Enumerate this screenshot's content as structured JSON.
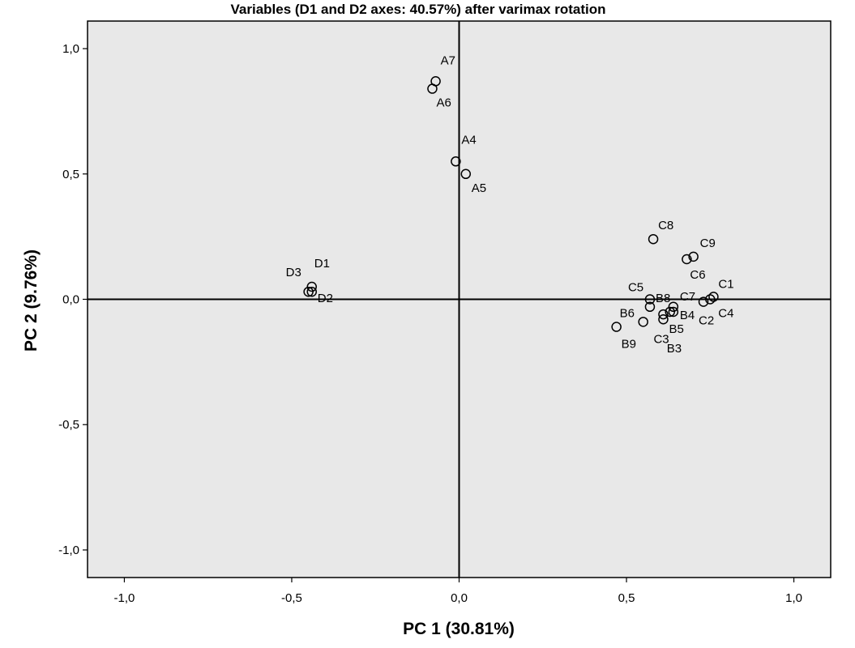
{
  "chart_data": {
    "type": "scatter",
    "title": "Variables (D1 and D2 axes: 40.57%) after varimax rotation",
    "xlabel": "PC 1 (30.81%)",
    "ylabel": "PC 2 (9.76%)",
    "xlim": [
      -1.11,
      1.11
    ],
    "ylim": [
      -1.11,
      1.11
    ],
    "xticks": [
      -1.0,
      -0.5,
      0.0,
      0.5,
      1.0
    ],
    "yticks": [
      -1.0,
      -0.5,
      0.0,
      0.5,
      1.0
    ],
    "xtick_labels": [
      "-1,0",
      "-0,5",
      "0,0",
      "0,5",
      "1,0"
    ],
    "ytick_labels": [
      "-1,0",
      "-0,5",
      "0,0",
      "0,5",
      "1,0"
    ],
    "reference_lines": {
      "x": 0.0,
      "y": 0.0
    },
    "grid": false,
    "background_color": "#e8e8e8",
    "marker_style": "open-circle",
    "points": [
      {
        "label": "A7",
        "x": -0.07,
        "y": 0.87
      },
      {
        "label": "A6",
        "x": -0.08,
        "y": 0.84
      },
      {
        "label": "A4",
        "x": -0.01,
        "y": 0.55
      },
      {
        "label": "A5",
        "x": 0.02,
        "y": 0.5
      },
      {
        "label": "D1",
        "x": -0.44,
        "y": 0.05
      },
      {
        "label": "D3",
        "x": -0.45,
        "y": 0.03
      },
      {
        "label": "D2",
        "x": -0.44,
        "y": 0.03
      },
      {
        "label": "C8",
        "x": 0.58,
        "y": 0.24
      },
      {
        "label": "C9",
        "x": 0.7,
        "y": 0.17
      },
      {
        "label": "C6",
        "x": 0.68,
        "y": 0.16
      },
      {
        "label": "C1",
        "x": 0.76,
        "y": 0.01
      },
      {
        "label": "C4",
        "x": 0.75,
        "y": 0.0
      },
      {
        "label": "C2",
        "x": 0.73,
        "y": -0.01
      },
      {
        "label": "C5",
        "x": 0.57,
        "y": 0.0
      },
      {
        "label": "C7",
        "x": 0.64,
        "y": -0.03
      },
      {
        "label": "B8",
        "x": 0.57,
        "y": -0.03
      },
      {
        "label": "B4",
        "x": 0.64,
        "y": -0.05
      },
      {
        "label": "B5",
        "x": 0.61,
        "y": -0.06
      },
      {
        "label": "B6",
        "x": 0.55,
        "y": -0.09
      },
      {
        "label": "C3",
        "x": 0.61,
        "y": -0.08
      },
      {
        "label": "B3",
        "x": 0.63,
        "y": -0.05
      },
      {
        "label": "B9",
        "x": 0.47,
        "y": -0.11
      }
    ]
  }
}
